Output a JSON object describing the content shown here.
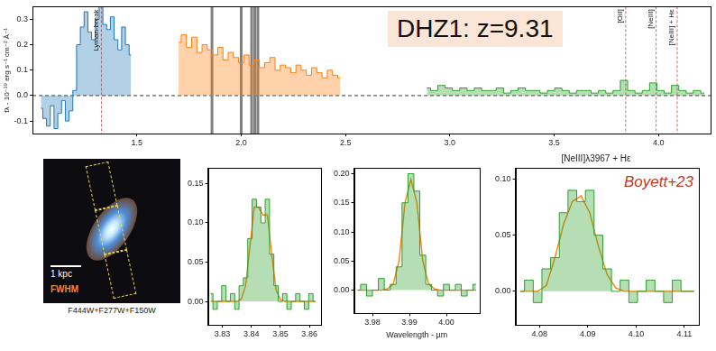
{
  "chart_data": [
    {
      "type": "line",
      "ylabel": "fλ - 10⁻¹⁹ erg s⁻¹ cm⁻² Å⁻¹",
      "annotation": "DHZ1: z=9.31",
      "xlim": [
        1.0,
        4.25
      ],
      "xticks": [
        1.5,
        {
          "value": 2,
          "label": "2.0"
        },
        2.5,
        {
          "value": 3,
          "label": "3.0"
        },
        3.5,
        {
          "value": 4,
          "label": "4.0"
        }
      ],
      "ylim": [
        -0.15,
        0.35
      ],
      "yticks": [
        -0.1,
        {
          "value": 0,
          "label": "0.0"
        },
        0.1,
        0.2,
        0.3
      ],
      "baseline": 0,
      "lines": [
        {
          "x": 1.33,
          "label": "Lyman-break"
        },
        {
          "x": 3.843,
          "label": "[OII]"
        },
        {
          "x": 3.989,
          "label": "[NeIII]"
        },
        {
          "x": 4.09,
          "label": "[NeIII] + Hε"
        }
      ],
      "masked": [
        1.86,
        2.0,
        2.05,
        2.065,
        2.08
      ],
      "series": [
        {
          "type": "step",
          "color": "#1f77b4",
          "x": [
            1.04,
            1.058,
            1.076,
            1.094,
            1.112,
            1.13,
            1.148,
            1.166,
            1.184,
            1.202,
            1.22,
            1.238,
            1.256,
            1.274,
            1.292,
            1.31,
            1.328,
            1.346,
            1.364,
            1.382,
            1.4,
            1.418,
            1.436,
            1.454,
            1.472
          ],
          "values": [
            -0.05,
            -0.09,
            -0.12,
            -0.04,
            -0.13,
            -0.07,
            -0.02,
            -0.1,
            -0.06,
            0.02,
            0.2,
            0.27,
            0.33,
            0.25,
            0.22,
            0.3,
            0.35,
            0.28,
            0.26,
            0.31,
            0.22,
            0.18,
            0.27,
            0.2,
            0.16
          ]
        },
        {
          "type": "step",
          "color": "#ff7f0e",
          "x": [
            1.7,
            1.725,
            1.75,
            1.775,
            1.8,
            1.825,
            1.85,
            1.875,
            1.9,
            1.925,
            1.95,
            1.975,
            2.0,
            2.025,
            2.05,
            2.075,
            2.1,
            2.125,
            2.15,
            2.175,
            2.2,
            2.225,
            2.25,
            2.275,
            2.3,
            2.325,
            2.35,
            2.375,
            2.4,
            2.425,
            2.45,
            2.475
          ],
          "values": [
            0.21,
            0.24,
            0.19,
            0.23,
            0.17,
            0.2,
            0.18,
            0.16,
            0.19,
            0.14,
            0.17,
            0.15,
            0.13,
            0.16,
            0.12,
            0.14,
            0.11,
            0.13,
            0.15,
            0.1,
            0.12,
            0.11,
            0.09,
            0.12,
            0.1,
            0.08,
            0.11,
            0.09,
            0.07,
            0.1,
            0.08,
            0.07
          ]
        },
        {
          "type": "step",
          "color": "#2ca02c",
          "x": [
            2.89,
            2.925,
            2.96,
            2.995,
            3.03,
            3.065,
            3.1,
            3.135,
            3.17,
            3.205,
            3.24,
            3.275,
            3.31,
            3.345,
            3.38,
            3.415,
            3.45,
            3.485,
            3.52,
            3.555,
            3.59,
            3.625,
            3.66,
            3.695,
            3.73,
            3.765,
            3.8,
            3.835,
            3.87,
            3.905,
            3.94,
            3.975,
            4.01,
            4.045,
            4.08,
            4.115,
            4.15,
            4.185,
            4.22
          ],
          "values": [
            0.03,
            0.02,
            0.04,
            0.03,
            0.02,
            0.03,
            0.02,
            0.03,
            0.02,
            0.02,
            0.03,
            0.01,
            0.02,
            0.03,
            0.02,
            0.02,
            0.01,
            0.02,
            0.03,
            0.02,
            0.01,
            0.02,
            0.02,
            0.01,
            0.02,
            0.01,
            0.02,
            0.06,
            0.02,
            0.01,
            0.02,
            0.05,
            0.02,
            0.01,
            0.04,
            0.02,
            0.01,
            0.02,
            0.01
          ]
        }
      ]
    },
    {
      "type": "line",
      "x": [
        3.826,
        3.8275,
        3.829,
        3.8305,
        3.832,
        3.8335,
        3.835,
        3.8365,
        3.838,
        3.8395,
        3.841,
        3.8425,
        3.844,
        3.8455,
        3.847,
        3.8485,
        3.85,
        3.8515,
        3.853,
        3.8545,
        3.856,
        3.8575,
        3.859,
        3.8605,
        3.862
      ],
      "series": [
        {
          "type": "step",
          "color": "#2ca02c",
          "values": [
            0.01,
            -0.01,
            0.0,
            0.02,
            0.0,
            0.01,
            -0.01,
            0.02,
            0.03,
            0.08,
            0.13,
            0.12,
            0.1,
            0.13,
            0.06,
            0.02,
            0.0,
            0.01,
            -0.01,
            0.0,
            0.01,
            0.0,
            -0.01,
            0.01,
            0.0
          ]
        },
        {
          "type": "line",
          "color": "#ff7f0e",
          "values": [
            0,
            0,
            0,
            0,
            0,
            0,
            0,
            0.003,
            0.02,
            0.07,
            0.12,
            0.12,
            0.11,
            0.11,
            0.06,
            0.015,
            0.002,
            0,
            0,
            0,
            0,
            0,
            0,
            0,
            0
          ]
        }
      ],
      "xlim": [
        3.825,
        3.864
      ],
      "xticks": [
        3.83,
        3.84,
        3.85,
        3.86
      ],
      "ylim": [
        -0.03,
        0.17
      ],
      "yticks": [
        {
          "value": 0,
          "label": "0.00"
        },
        0.05,
        {
          "value": 0.1,
          "label": "0.10"
        },
        0.15
      ]
    },
    {
      "type": "line",
      "xlabel": "Wavelength - µm",
      "x": [
        3.976,
        3.9776,
        3.9792,
        3.9808,
        3.9824,
        3.984,
        3.9856,
        3.9872,
        3.9888,
        3.9904,
        3.992,
        3.9936,
        3.9952,
        3.9968,
        3.9984,
        4.0,
        4.0016,
        4.0032,
        4.0048,
        4.0064,
        4.008
      ],
      "series": [
        {
          "type": "step",
          "color": "#2ca02c",
          "values": [
            0.0,
            0.01,
            -0.01,
            0.0,
            0.02,
            0.0,
            0.01,
            0.04,
            0.15,
            0.2,
            0.17,
            0.06,
            0.01,
            0.0,
            -0.01,
            0.01,
            0.0,
            0.01,
            -0.01,
            0.0,
            0.01
          ]
        },
        {
          "type": "line",
          "color": "#ff7f0e",
          "values": [
            0,
            0,
            0,
            0,
            0,
            0.002,
            0.01,
            0.05,
            0.15,
            0.19,
            0.15,
            0.05,
            0.01,
            0.002,
            0,
            0,
            0,
            0,
            0,
            0,
            0
          ]
        }
      ],
      "xlim": [
        3.975,
        4.009
      ],
      "xticks": [
        3.98,
        3.99,
        {
          "value": 4,
          "label": "4.00"
        }
      ],
      "ylim": [
        -0.04,
        0.21
      ],
      "yticks": [
        {
          "value": 0,
          "label": "0.00"
        },
        0.05,
        {
          "value": 0.1,
          "label": "0.10"
        },
        0.15,
        {
          "value": 0.2,
          "label": "0.20"
        }
      ]
    },
    {
      "type": "line",
      "title": "[NeIII]λ3967 + Hε",
      "annotation": "Boyett+23",
      "x": [
        4.076,
        4.0778,
        4.0796,
        4.0814,
        4.0832,
        4.085,
        4.0868,
        4.0886,
        4.0904,
        4.0922,
        4.094,
        4.0958,
        4.0976,
        4.0994,
        4.1012,
        4.103,
        4.1048,
        4.1066,
        4.1084,
        4.1102,
        4.112
      ],
      "series": [
        {
          "type": "step",
          "color": "#2ca02c",
          "values": [
            0.0,
            0.01,
            -0.01,
            0.02,
            0.03,
            0.07,
            0.09,
            0.08,
            0.09,
            0.05,
            0.02,
            0.0,
            0.01,
            -0.01,
            0.0,
            0.01,
            0.0,
            -0.01,
            0.01,
            0.0,
            0.0
          ]
        },
        {
          "type": "line",
          "color": "#ff7f0e",
          "values": [
            0,
            0,
            0,
            0.005,
            0.03,
            0.06,
            0.08,
            0.085,
            0.07,
            0.04,
            0.015,
            0.003,
            0,
            0,
            0,
            0,
            0,
            0,
            0,
            0,
            0
          ]
        }
      ],
      "xlim": [
        4.075,
        4.113
      ],
      "xticks": [
        4.08,
        4.09,
        {
          "value": 4.1,
          "label": "4.10"
        },
        4.11
      ],
      "ylim": [
        -0.03,
        0.11
      ],
      "yticks": [
        {
          "value": 0,
          "label": "0.00"
        },
        0.05,
        {
          "value": 0.1,
          "label": "0.10"
        }
      ]
    }
  ],
  "image": {
    "scale_label": "1 kpc",
    "psf_label": "FWHM",
    "caption": "F444W+F277W+F150W"
  }
}
